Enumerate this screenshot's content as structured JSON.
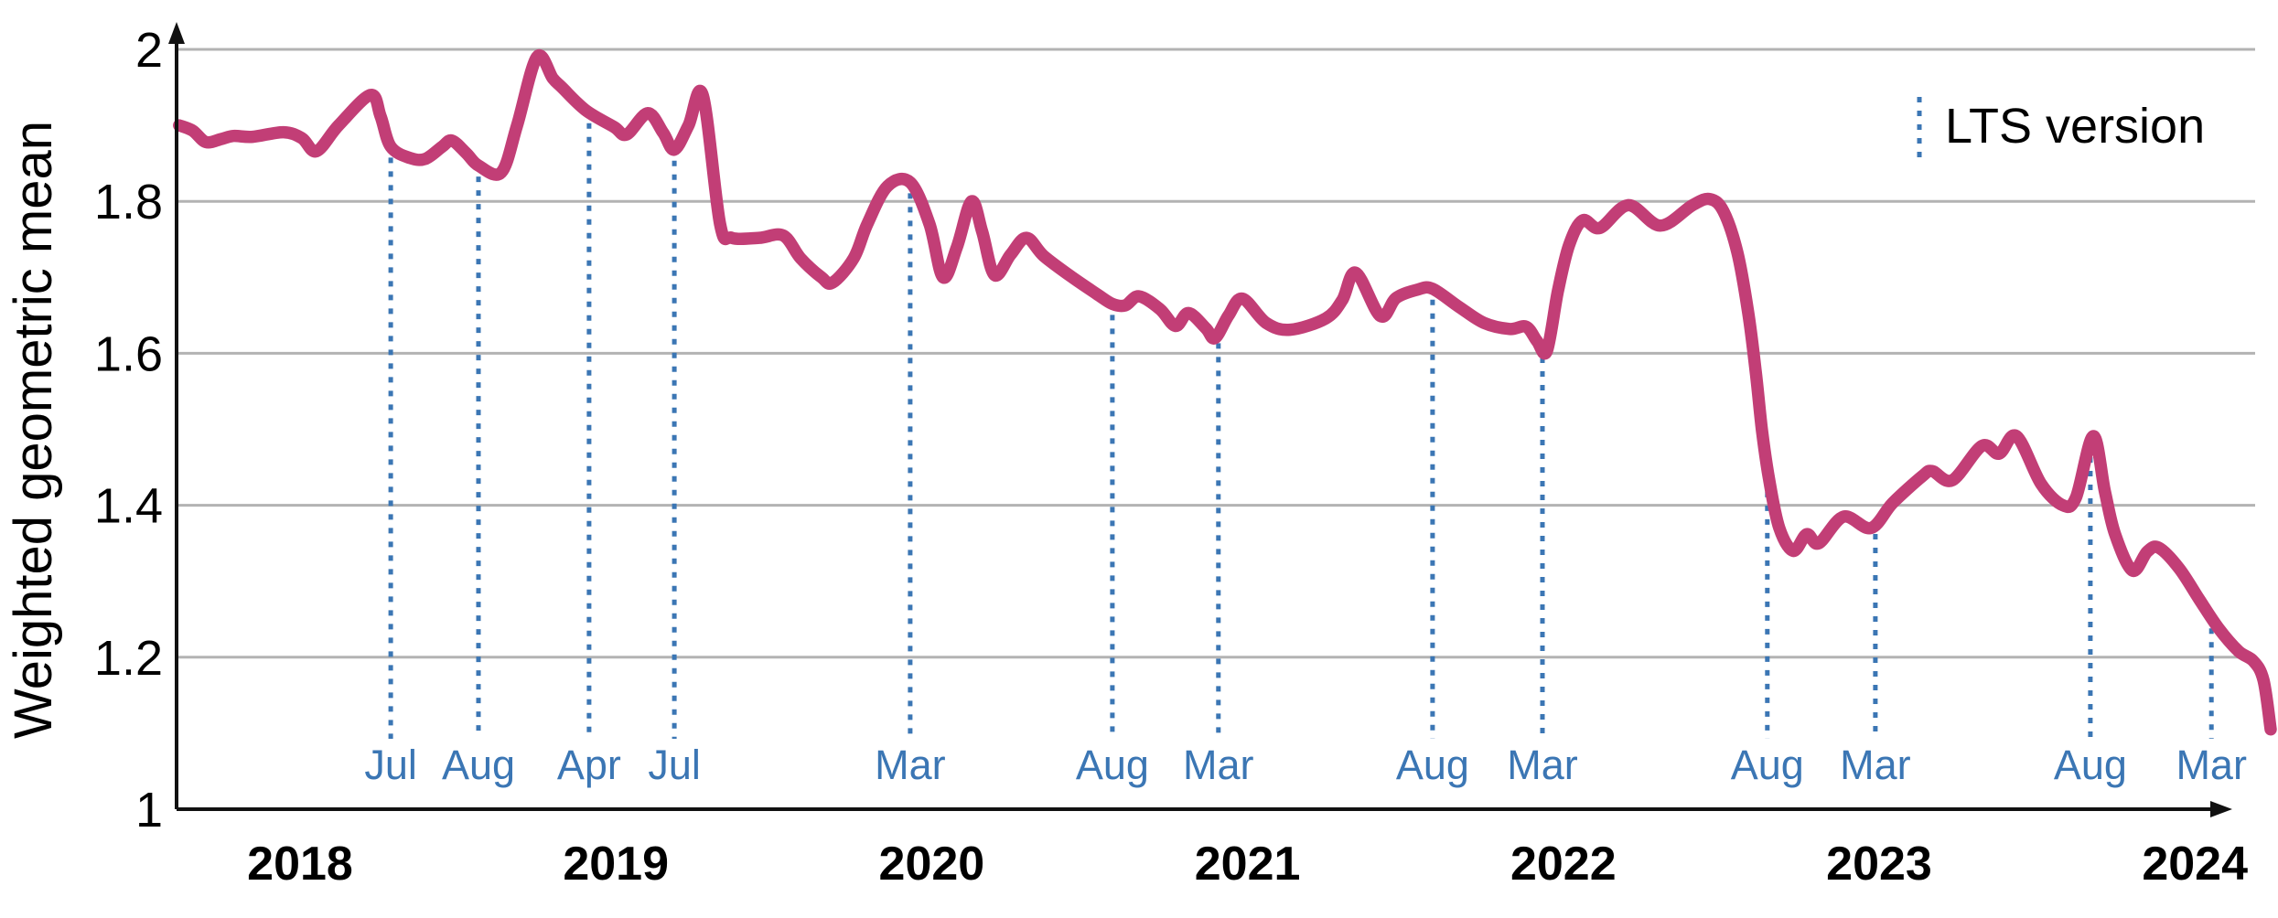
{
  "chart_data": {
    "type": "line",
    "title": "",
    "xlabel": "",
    "ylabel": "Weighted geometric mean",
    "ylim": [
      1,
      2
    ],
    "xlim_years": [
      2017.6,
      2024.26
    ],
    "grid": "horizontal",
    "y_ticks": [
      {
        "label": "2",
        "value": 2.0
      },
      {
        "label": "1.8",
        "value": 1.8
      },
      {
        "label": "1.6",
        "value": 1.6
      },
      {
        "label": "1.4",
        "value": 1.4
      },
      {
        "label": "1.2",
        "value": 1.2
      },
      {
        "label": "1",
        "value": 1.0
      }
    ],
    "x_ticks": [
      {
        "label": "2018",
        "year": 2018
      },
      {
        "label": "2019",
        "year": 2019
      },
      {
        "label": "2020",
        "year": 2020
      },
      {
        "label": "2021",
        "year": 2021
      },
      {
        "label": "2022",
        "year": 2022
      },
      {
        "label": "2023",
        "year": 2023
      },
      {
        "label": "2024",
        "year": 2024
      }
    ],
    "legend": {
      "label": "LTS version",
      "position": "top-right",
      "marker": "dotted-vertical-line"
    },
    "lts_releases": [
      {
        "label": "Jul",
        "x": 2018.287
      },
      {
        "label": "Aug",
        "x": 2018.565
      },
      {
        "label": "Apr",
        "x": 2018.915
      },
      {
        "label": "Jul",
        "x": 2019.185
      },
      {
        "label": "Mar",
        "x": 2019.932
      },
      {
        "label": "Aug",
        "x": 2020.572
      },
      {
        "label": "Mar",
        "x": 2020.908
      },
      {
        "label": "Aug",
        "x": 2021.586
      },
      {
        "label": "Mar",
        "x": 2021.934
      },
      {
        "label": "Aug",
        "x": 2022.646
      },
      {
        "label": "Mar",
        "x": 2022.988
      },
      {
        "label": "Aug",
        "x": 2023.669
      },
      {
        "label": "Mar",
        "x": 2024.052
      }
    ],
    "series": [
      {
        "name": "Weighted geometric mean",
        "color": "#c23e76",
        "points": [
          [
            2017.617,
            1.9
          ],
          [
            2017.66,
            1.893
          ],
          [
            2017.702,
            1.878
          ],
          [
            2017.75,
            1.882
          ],
          [
            2017.789,
            1.886
          ],
          [
            2017.85,
            1.885
          ],
          [
            2017.948,
            1.891
          ],
          [
            2018.006,
            1.883
          ],
          [
            2018.052,
            1.866
          ],
          [
            2018.122,
            1.9
          ],
          [
            2018.223,
            1.94
          ],
          [
            2018.255,
            1.912
          ],
          [
            2018.287,
            1.872
          ],
          [
            2018.348,
            1.857
          ],
          [
            2018.397,
            1.856
          ],
          [
            2018.45,
            1.872
          ],
          [
            2018.481,
            1.88
          ],
          [
            2018.527,
            1.863
          ],
          [
            2018.565,
            1.847
          ],
          [
            2018.637,
            1.838
          ],
          [
            2018.687,
            1.9
          ],
          [
            2018.75,
            1.99
          ],
          [
            2018.8,
            1.962
          ],
          [
            2018.829,
            1.95
          ],
          [
            2018.904,
            1.92
          ],
          [
            2018.994,
            1.898
          ],
          [
            2019.034,
            1.888
          ],
          [
            2019.101,
            1.916
          ],
          [
            2019.15,
            1.89
          ],
          [
            2019.185,
            1.868
          ],
          [
            2019.23,
            1.9
          ],
          [
            2019.275,
            1.94
          ],
          [
            2019.33,
            1.77
          ],
          [
            2019.367,
            1.752
          ],
          [
            2019.454,
            1.752
          ],
          [
            2019.53,
            1.755
          ],
          [
            2019.585,
            1.725
          ],
          [
            2019.651,
            1.7
          ],
          [
            2019.686,
            1.693
          ],
          [
            2019.753,
            1.725
          ],
          [
            2019.796,
            1.77
          ],
          [
            2019.86,
            1.82
          ],
          [
            2019.932,
            1.825
          ],
          [
            2019.993,
            1.77
          ],
          [
            2020.036,
            1.7
          ],
          [
            2020.08,
            1.74
          ],
          [
            2020.126,
            1.8
          ],
          [
            2020.16,
            1.76
          ],
          [
            2020.199,
            1.703
          ],
          [
            2020.25,
            1.73
          ],
          [
            2020.3,
            1.752
          ],
          [
            2020.355,
            1.728
          ],
          [
            2020.445,
            1.7
          ],
          [
            2020.523,
            1.678
          ],
          [
            2020.572,
            1.665
          ],
          [
            2020.613,
            1.663
          ],
          [
            2020.656,
            1.675
          ],
          [
            2020.723,
            1.658
          ],
          [
            2020.772,
            1.636
          ],
          [
            2020.813,
            1.653
          ],
          [
            2020.868,
            1.633
          ],
          [
            2020.897,
            1.62
          ],
          [
            2020.94,
            1.65
          ],
          [
            2020.984,
            1.672
          ],
          [
            2021.059,
            1.64
          ],
          [
            2021.135,
            1.631
          ],
          [
            2021.248,
            1.646
          ],
          [
            2021.3,
            1.67
          ],
          [
            2021.343,
            1.706
          ],
          [
            2021.421,
            1.649
          ],
          [
            2021.471,
            1.673
          ],
          [
            2021.54,
            1.684
          ],
          [
            2021.586,
            1.685
          ],
          [
            2021.67,
            1.661
          ],
          [
            2021.749,
            1.64
          ],
          [
            2021.83,
            1.632
          ],
          [
            2021.882,
            1.635
          ],
          [
            2021.917,
            1.616
          ],
          [
            2021.948,
            1.603
          ],
          [
            2021.983,
            1.682
          ],
          [
            2022.018,
            1.742
          ],
          [
            2022.061,
            1.775
          ],
          [
            2022.116,
            1.765
          ],
          [
            2022.206,
            1.795
          ],
          [
            2022.307,
            1.768
          ],
          [
            2022.409,
            1.795
          ],
          [
            2022.464,
            1.803
          ],
          [
            2022.507,
            1.787
          ],
          [
            2022.551,
            1.733
          ],
          [
            2022.585,
            1.655
          ],
          [
            2022.609,
            1.577
          ],
          [
            2022.629,
            1.499
          ],
          [
            2022.652,
            1.433
          ],
          [
            2022.684,
            1.37
          ],
          [
            2022.728,
            1.34
          ],
          [
            2022.771,
            1.362
          ],
          [
            2022.809,
            1.35
          ],
          [
            2022.887,
            1.385
          ],
          [
            2022.974,
            1.37
          ],
          [
            2023.043,
            1.403
          ],
          [
            2023.136,
            1.438
          ],
          [
            2023.168,
            1.445
          ],
          [
            2023.232,
            1.433
          ],
          [
            2023.325,
            1.478
          ],
          [
            2023.38,
            1.468
          ],
          [
            2023.435,
            1.491
          ],
          [
            2023.513,
            1.428
          ],
          [
            2023.582,
            1.4
          ],
          [
            2023.623,
            1.41
          ],
          [
            2023.678,
            1.491
          ],
          [
            2023.715,
            1.418
          ],
          [
            2023.747,
            1.362
          ],
          [
            2023.802,
            1.314
          ],
          [
            2023.849,
            1.339
          ],
          [
            2023.886,
            1.344
          ],
          [
            2023.95,
            1.317
          ],
          [
            2024.014,
            1.276
          ],
          [
            2024.075,
            1.238
          ],
          [
            2024.138,
            1.208
          ],
          [
            2024.185,
            1.195
          ],
          [
            2024.217,
            1.17
          ],
          [
            2024.24,
            1.105
          ]
        ]
      }
    ]
  },
  "colors": {
    "series": "#c23e76",
    "lts_line": "#3b76b4",
    "month_label": "#3b76b4",
    "grid": "#b3b3b3",
    "axis": "#111111",
    "text": "#000000"
  }
}
